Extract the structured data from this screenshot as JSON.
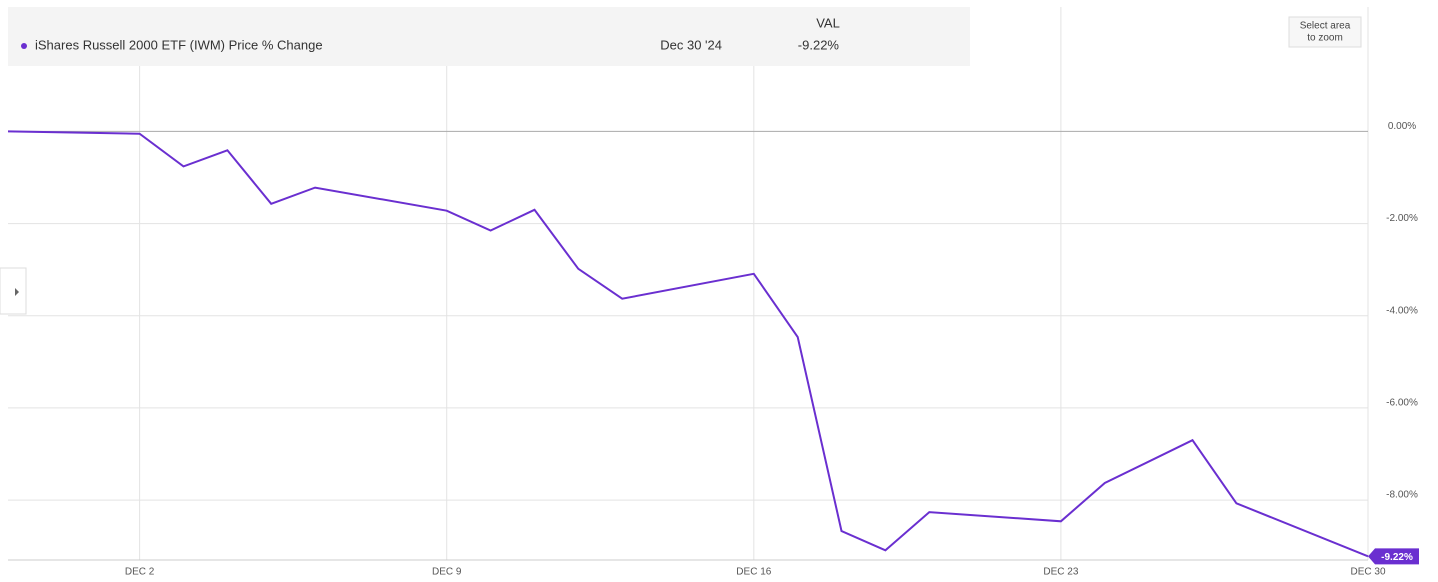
{
  "chart_data": {
    "type": "line",
    "header": {
      "column": "VAL",
      "date": "Dec 30 '24"
    },
    "last_value_label": "-9.22%",
    "zoom_button": [
      "Select area",
      "to zoom"
    ],
    "x": [
      "2024-11-29",
      "2024-12-02",
      "2024-12-03",
      "2024-12-04",
      "2024-12-05",
      "2024-12-06",
      "2024-12-09",
      "2024-12-10",
      "2024-12-11",
      "2024-12-12",
      "2024-12-13",
      "2024-12-16",
      "2024-12-17",
      "2024-12-18",
      "2024-12-19",
      "2024-12-20",
      "2024-12-23",
      "2024-12-24",
      "2024-12-26",
      "2024-12-27",
      "2024-12-30"
    ],
    "series": [
      {
        "name": "iShares Russell 2000 ETF (IWM) Price % Change",
        "color": "#6a2fd0",
        "values": [
          0,
          -0.05,
          -0.76,
          -0.41,
          -1.57,
          -1.22,
          -1.72,
          -2.15,
          -1.7,
          -2.98,
          -3.63,
          -3.09,
          -4.46,
          -8.67,
          -9.09,
          -8.26,
          -8.46,
          -7.63,
          -6.7,
          -8.07,
          -9.22
        ]
      }
    ],
    "xlim": [
      "2024-11-29",
      "2024-12-30"
    ],
    "xticks": [
      {
        "value": "2024-12-02",
        "label": "DEC 2"
      },
      {
        "value": "2024-12-09",
        "label": "DEC 9"
      },
      {
        "value": "2024-12-16",
        "label": "DEC 16"
      },
      {
        "value": "2024-12-23",
        "label": "DEC 23"
      },
      {
        "value": "2024-12-30",
        "label": "DEC 30"
      }
    ],
    "ylim": [
      -9.3,
      2.7
    ],
    "yticks": [
      {
        "value": 0,
        "label": "0.00%"
      },
      {
        "value": -2,
        "label": "-2.00%"
      },
      {
        "value": -4,
        "label": "-4.00%"
      },
      {
        "value": -6,
        "label": "-6.00%"
      },
      {
        "value": -8,
        "label": "-8.00%"
      }
    ],
    "grid": true
  }
}
